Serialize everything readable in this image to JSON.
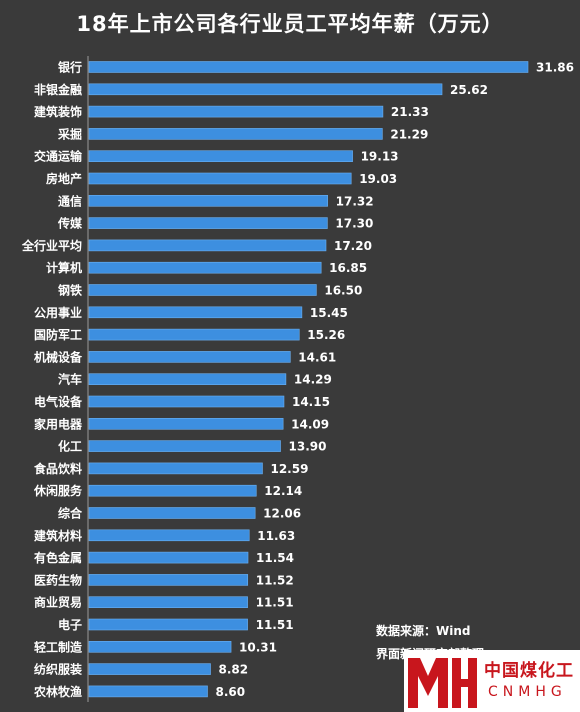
{
  "header": {
    "title": "18年上市公司各行业员工平均年薪（万元）"
  },
  "notes": {
    "source": "数据来源：Wind",
    "org": "界面新闻研究部整理"
  },
  "logo": {
    "cn": "中国煤化工",
    "en": "CNMHG"
  },
  "colors": {
    "background": "#3a3a3a",
    "bar": "#3d8fe0",
    "text": "#ffffff"
  },
  "chart_data": {
    "type": "bar",
    "orientation": "horizontal",
    "title": "18年上市公司各行业员工平均年薪（万元）",
    "xlim": [
      0,
      31.86
    ],
    "grid": false,
    "legend": "none",
    "categories": [
      "银行",
      "非银金融",
      "建筑装饰",
      "采掘",
      "交通运输",
      "房地产",
      "通信",
      "传媒",
      "全行业平均",
      "计算机",
      "钢铁",
      "公用事业",
      "国防军工",
      "机械设备",
      "汽车",
      "电气设备",
      "家用电器",
      "化工",
      "食品饮料",
      "休闲服务",
      "综合",
      "建筑材料",
      "有色金属",
      "医药生物",
      "商业贸易",
      "电子",
      "轻工制造",
      "纺织服装",
      "农林牧渔"
    ],
    "values": [
      31.86,
      25.62,
      21.33,
      21.29,
      19.13,
      19.03,
      17.32,
      17.3,
      17.2,
      16.85,
      16.5,
      15.45,
      15.26,
      14.61,
      14.29,
      14.15,
      14.09,
      13.9,
      12.59,
      12.14,
      12.06,
      11.63,
      11.54,
      11.52,
      11.51,
      11.51,
      10.31,
      8.82,
      8.6
    ],
    "value_labels": [
      "31.86",
      "25.62",
      "21.33",
      "21.29",
      "19.13",
      "19.03",
      "17.32",
      "17.30",
      "17.20",
      "16.85",
      "16.50",
      "15.45",
      "15.26",
      "14.61",
      "14.29",
      "14.15",
      "14.09",
      "13.90",
      "12.59",
      "12.14",
      "12.06",
      "11.63",
      "11.54",
      "11.52",
      "11.51",
      "11.51",
      "10.31",
      "8.82",
      "8.60"
    ]
  }
}
